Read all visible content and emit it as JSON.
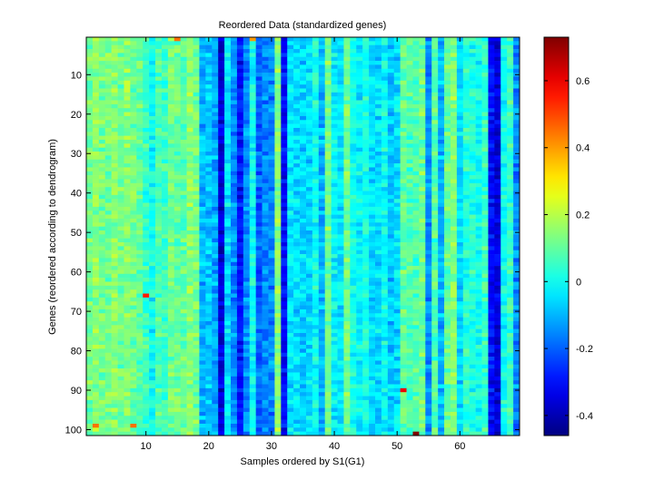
{
  "chart_data": {
    "type": "heatmap",
    "title": "Reordered Data (standardized genes)",
    "xlabel": "Samples ordered by S1(G1)",
    "ylabel": "Genes (reordered according to dendrogram)",
    "n_rows": 101,
    "n_cols": 69,
    "xlim": [
      0.5,
      69.5
    ],
    "ylim": [
      0.5,
      101.5
    ],
    "xticks": [
      10,
      20,
      30,
      40,
      50,
      60
    ],
    "yticks": [
      10,
      20,
      30,
      40,
      50,
      60,
      70,
      80,
      90,
      100
    ],
    "colormap": "jet",
    "clim": [
      -0.46,
      0.73
    ],
    "colorbar_ticks": [
      -0.4,
      -0.2,
      0,
      0.2,
      0.4,
      0.6
    ],
    "colorbar_tick_labels": [
      "-0.4",
      "-0.2",
      "0",
      "0.2",
      "0.4",
      "0.6"
    ],
    "grid": false,
    "column_mean_values": [
      0.12,
      0.15,
      0.12,
      0.12,
      0.15,
      0.12,
      0.15,
      0.12,
      0.1,
      0.05,
      0.0,
      0.08,
      0.05,
      0.12,
      0.1,
      0.1,
      0.15,
      0.12,
      -0.1,
      -0.08,
      -0.12,
      -0.35,
      -0.05,
      -0.15,
      -0.3,
      -0.15,
      0.0,
      -0.2,
      -0.15,
      -0.15,
      0.15,
      -0.3,
      -0.05,
      -0.05,
      -0.06,
      -0.05,
      0.0,
      -0.1,
      0.12,
      -0.02,
      -0.05,
      0.12,
      0.0,
      -0.02,
      0.02,
      -0.05,
      -0.05,
      0.0,
      -0.08,
      -0.05,
      0.1,
      0.08,
      0.08,
      0.12,
      -0.15,
      0.08,
      -0.1,
      0.1,
      0.15,
      -0.05,
      0.03,
      0.02,
      0.0,
      0.05,
      -0.3,
      -0.35,
      0.0,
      0.05,
      -0.15
    ],
    "notable_cells": [
      {
        "row": 66,
        "col": 10,
        "value": 0.55
      },
      {
        "row": 101,
        "col": 53,
        "value": 0.73
      },
      {
        "row": 90,
        "col": 51,
        "value": 0.6
      },
      {
        "row": 1,
        "col": 15,
        "value": 0.45
      },
      {
        "row": 1,
        "col": 27,
        "value": 0.4
      },
      {
        "row": 99,
        "col": 8,
        "value": 0.45
      },
      {
        "row": 99,
        "col": 2,
        "value": 0.45
      }
    ]
  }
}
